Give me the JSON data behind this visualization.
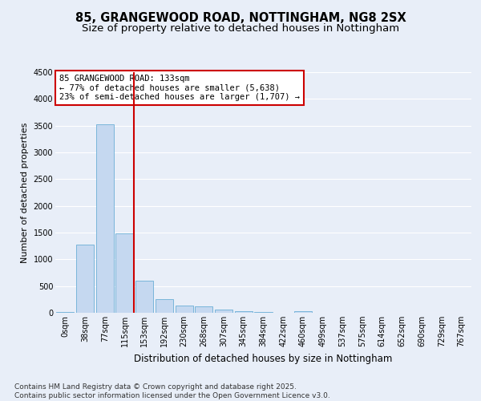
{
  "title_line1": "85, GRANGEWOOD ROAD, NOTTINGHAM, NG8 2SX",
  "title_line2": "Size of property relative to detached houses in Nottingham",
  "xlabel": "Distribution of detached houses by size in Nottingham",
  "ylabel": "Number of detached properties",
  "bar_labels": [
    "0sqm",
    "38sqm",
    "77sqm",
    "115sqm",
    "153sqm",
    "192sqm",
    "230sqm",
    "268sqm",
    "307sqm",
    "345sqm",
    "384sqm",
    "422sqm",
    "460sqm",
    "499sqm",
    "537sqm",
    "575sqm",
    "614sqm",
    "652sqm",
    "690sqm",
    "729sqm",
    "767sqm"
  ],
  "bar_values": [
    20,
    1280,
    3530,
    1490,
    600,
    255,
    130,
    120,
    65,
    30,
    10,
    0,
    30,
    0,
    0,
    0,
    0,
    0,
    0,
    0,
    0
  ],
  "bar_color": "#c5d8f0",
  "bar_edge_color": "#6aaed6",
  "vline_x": 3.47,
  "vline_color": "#cc0000",
  "annotation_text": "85 GRANGEWOOD ROAD: 133sqm\n← 77% of detached houses are smaller (5,638)\n23% of semi-detached houses are larger (1,707) →",
  "annotation_box_color": "#ffffff",
  "annotation_box_edge_color": "#cc0000",
  "ylim": [
    0,
    4500
  ],
  "yticks": [
    0,
    500,
    1000,
    1500,
    2000,
    2500,
    3000,
    3500,
    4000,
    4500
  ],
  "background_color": "#e8eef8",
  "grid_color": "#ffffff",
  "footer_text": "Contains HM Land Registry data © Crown copyright and database right 2025.\nContains public sector information licensed under the Open Government Licence v3.0.",
  "title_fontsize": 10.5,
  "subtitle_fontsize": 9.5,
  "xlabel_fontsize": 8.5,
  "ylabel_fontsize": 8,
  "tick_fontsize": 7,
  "annotation_fontsize": 7.5,
  "footer_fontsize": 6.5
}
